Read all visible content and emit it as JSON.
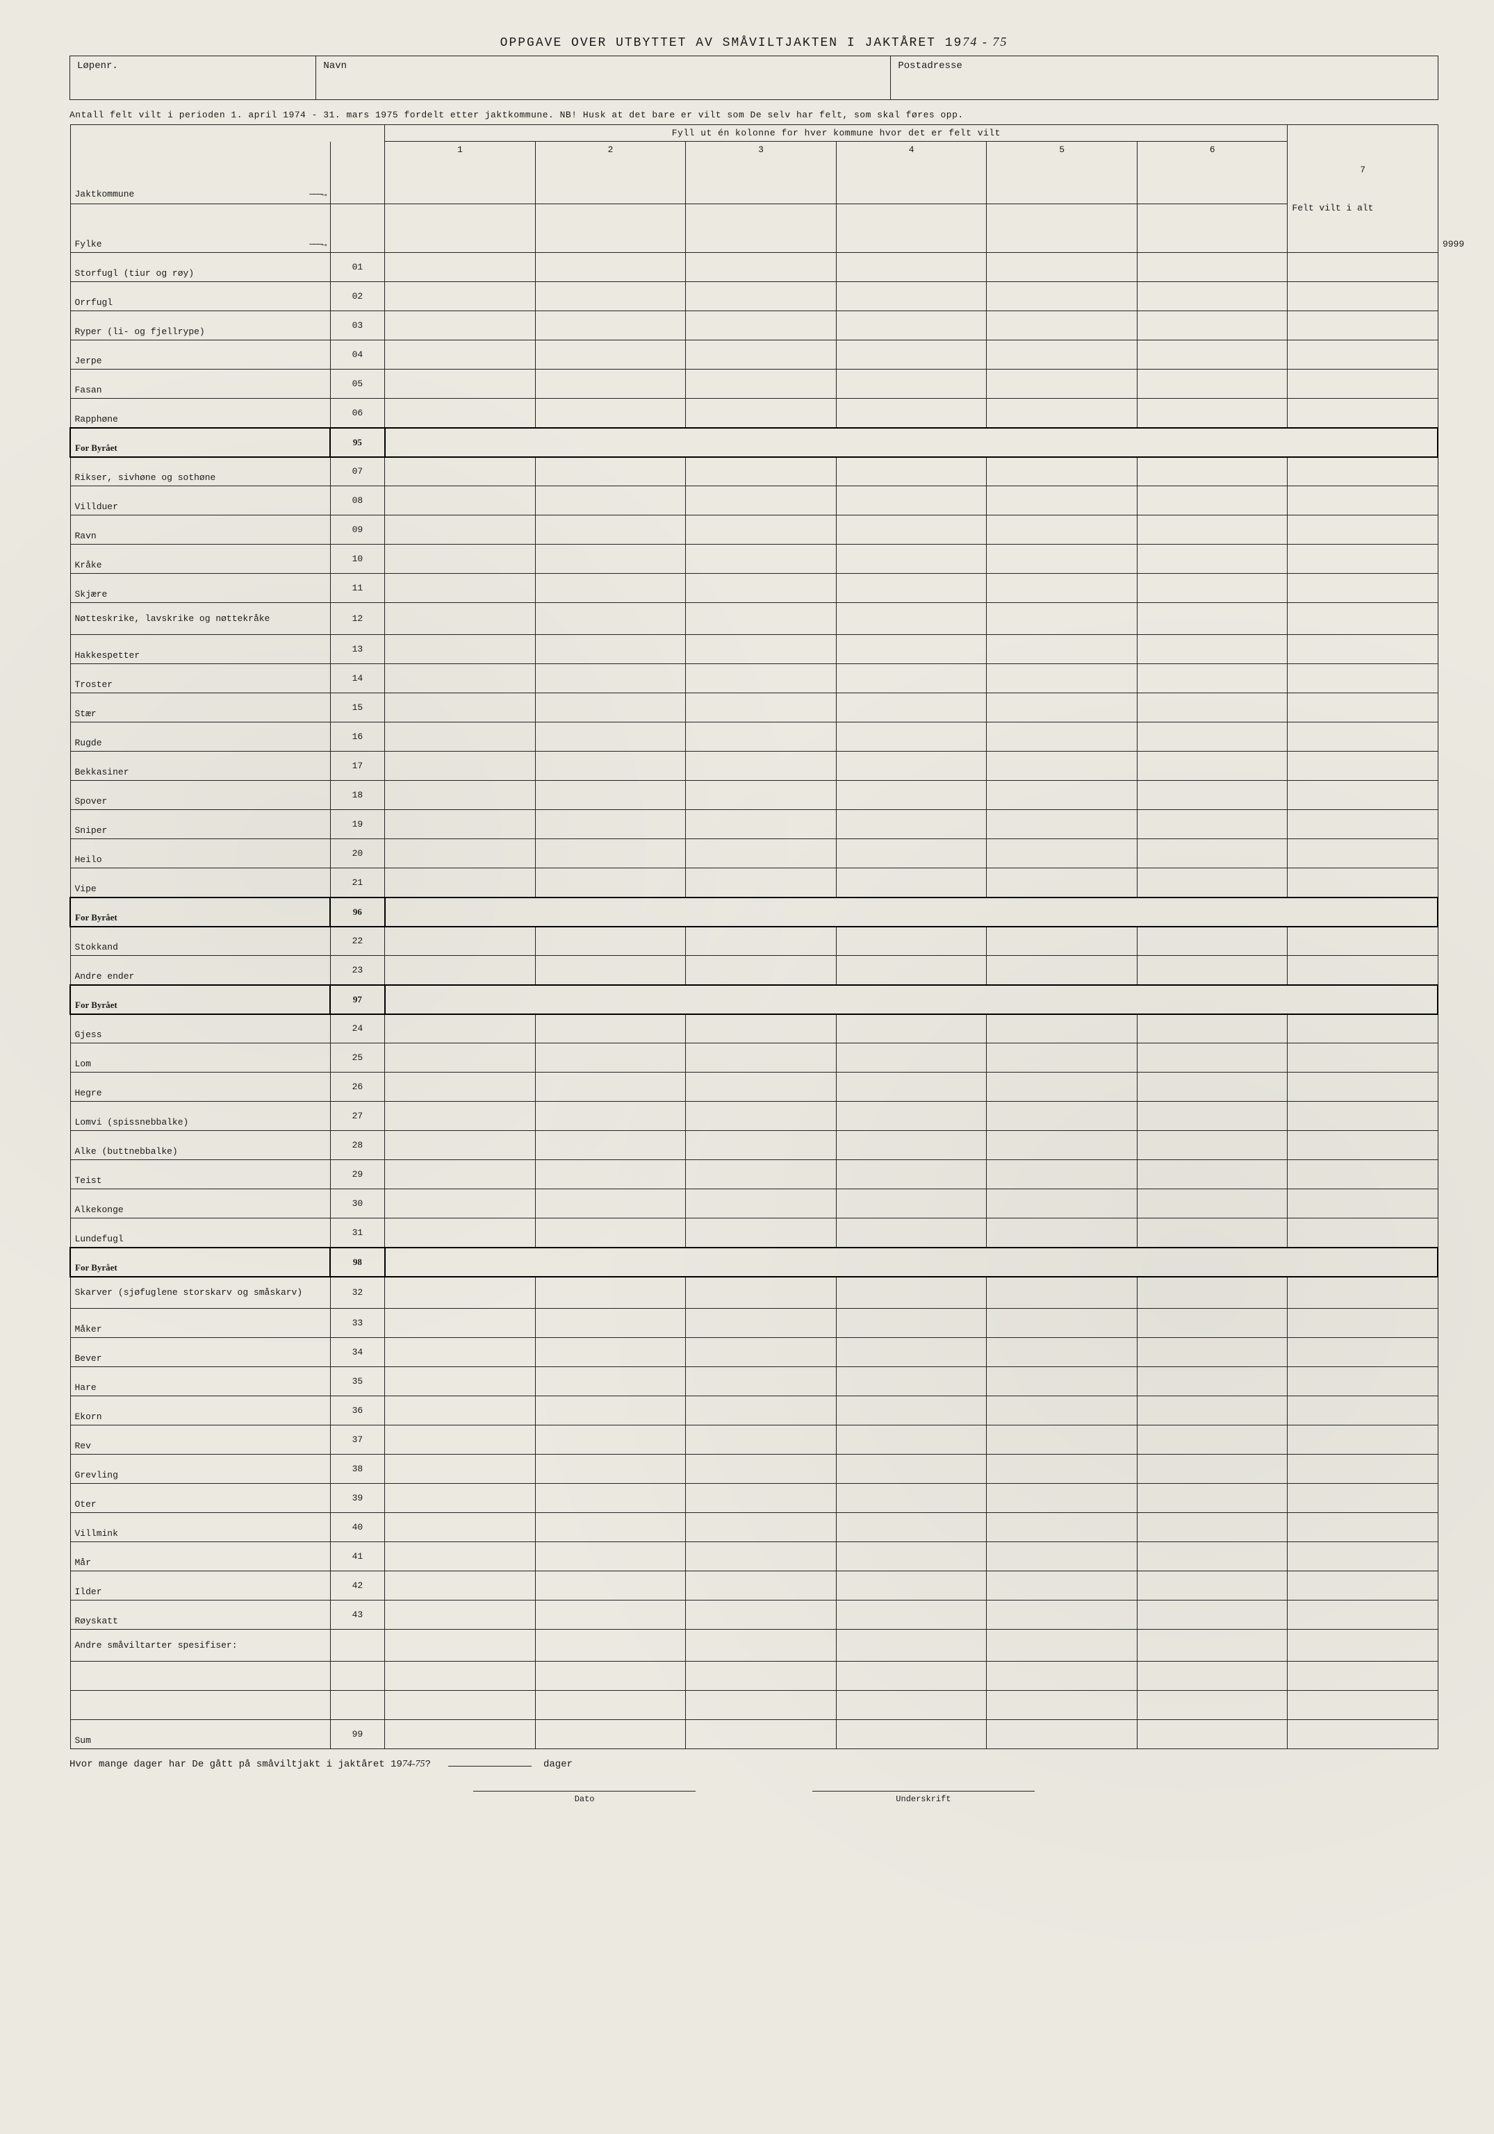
{
  "title_prefix": "OPPGAVE OVER UTBYTTET AV SMÅVILTJAKTEN I JAKTÅRET 19",
  "title_years": "74 - 75",
  "header": {
    "lopenr": "Løpenr.",
    "navn": "Navn",
    "postadresse": "Postadresse"
  },
  "note_line": "Antall felt vilt i perioden 1. april 1974 - 31. mars 1975 fordelt etter jaktkommune. NB! Husk at det bare er vilt som De selv har felt, som skal føres opp.",
  "subnote_line": "Fyll ut én kolonne for hver kommune hvor det er felt vilt",
  "col_numbers": [
    "1",
    "2",
    "3",
    "4",
    "5",
    "6",
    "7"
  ],
  "jaktkommune_label": "Jaktkommune",
  "fylke_label": "Fylke",
  "arrow": "———→",
  "col7_text": "Felt vilt i alt",
  "value_9999": "9999",
  "byraet_label": "For Byrået",
  "rows": [
    {
      "label": "Storfugl (tiur og røy)",
      "code": "01"
    },
    {
      "label": "Orrfugl",
      "code": "02"
    },
    {
      "label": "Ryper (li- og fjellrype)",
      "code": "03"
    },
    {
      "label": "Jerpe",
      "code": "04"
    },
    {
      "label": "Fasan",
      "code": "05"
    },
    {
      "label": "Rapphøne",
      "code": "06"
    },
    {
      "label": "For Byrået",
      "code": "95",
      "byraet": true
    },
    {
      "label": "Rikser, sivhøne og sothøne",
      "code": "07"
    },
    {
      "label": "Villduer",
      "code": "08"
    },
    {
      "label": "Ravn",
      "code": "09"
    },
    {
      "label": "Kråke",
      "code": "10"
    },
    {
      "label": "Skjære",
      "code": "11"
    },
    {
      "label": "Nøtteskrike, lavskrike og nøttekråke",
      "code": "12",
      "twoline": true
    },
    {
      "label": "Hakkespetter",
      "code": "13"
    },
    {
      "label": "Troster",
      "code": "14"
    },
    {
      "label": "Stær",
      "code": "15"
    },
    {
      "label": "Rugde",
      "code": "16"
    },
    {
      "label": "Bekkasiner",
      "code": "17"
    },
    {
      "label": "Spover",
      "code": "18"
    },
    {
      "label": "Sniper",
      "code": "19"
    },
    {
      "label": "Heilo",
      "code": "20"
    },
    {
      "label": "Vipe",
      "code": "21"
    },
    {
      "label": "For Byrået",
      "code": "96",
      "byraet": true
    },
    {
      "label": "Stokkand",
      "code": "22"
    },
    {
      "label": "Andre ender",
      "code": "23"
    },
    {
      "label": "For Byrået",
      "code": "97",
      "byraet": true
    },
    {
      "label": "Gjess",
      "code": "24"
    },
    {
      "label": "Lom",
      "code": "25"
    },
    {
      "label": "Hegre",
      "code": "26"
    },
    {
      "label": "Lomvi (spissnebbalke)",
      "code": "27"
    },
    {
      "label": "Alke (buttnebbalke)",
      "code": "28"
    },
    {
      "label": "Teist",
      "code": "29"
    },
    {
      "label": "Alkekonge",
      "code": "30"
    },
    {
      "label": "Lundefugl",
      "code": "31"
    },
    {
      "label": "For Byrået",
      "code": "98",
      "byraet": true
    },
    {
      "label": "Skarver (sjøfuglene storskarv og småskarv)",
      "code": "32",
      "twoline": true
    },
    {
      "label": "Måker",
      "code": "33"
    },
    {
      "label": "Bever",
      "code": "34"
    },
    {
      "label": "Hare",
      "code": "35"
    },
    {
      "label": "Ekorn",
      "code": "36"
    },
    {
      "label": "Rev",
      "code": "37"
    },
    {
      "label": "Grevling",
      "code": "38"
    },
    {
      "label": "Oter",
      "code": "39"
    },
    {
      "label": "Villmink",
      "code": "40"
    },
    {
      "label": "Mår",
      "code": "41"
    },
    {
      "label": "Ilder",
      "code": "42"
    },
    {
      "label": "Røyskatt",
      "code": "43"
    },
    {
      "label": "Andre småviltarter spesifiser:",
      "code": "",
      "twoline": true
    },
    {
      "label": "",
      "code": ""
    },
    {
      "label": "",
      "code": ""
    },
    {
      "label": "Sum",
      "code": "99"
    }
  ],
  "footer_q_prefix": "Hvor mange dager har De gått på småviltjakt i jaktåret 19",
  "footer_q_years": "74-75",
  "footer_q_suffix": "?",
  "footer_dager": "dager",
  "sig_dato": "Dato",
  "sig_underskrift": "Underskrift"
}
